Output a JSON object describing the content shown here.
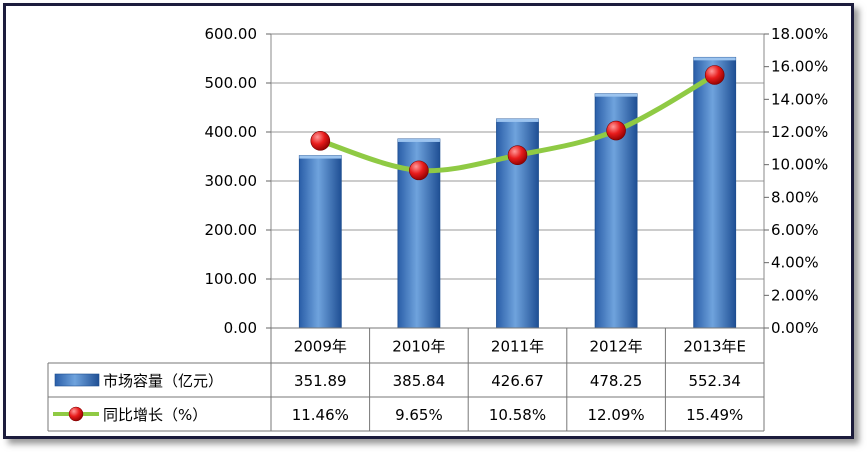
{
  "chart_data": {
    "type": "bar",
    "categories": [
      "2009年",
      "2010年",
      "2011年",
      "2012年",
      "2013年E"
    ],
    "series": [
      {
        "name": "市场容量（亿元）",
        "type": "bar",
        "axis": "left",
        "values": [
          351.89,
          385.84,
          426.67,
          478.25,
          552.34
        ],
        "labels": [
          "351.89",
          "385.84",
          "426.67",
          "478.25",
          "552.34"
        ]
      },
      {
        "name": "同比增长（%）",
        "type": "line",
        "axis": "right",
        "values": [
          11.46,
          9.65,
          10.58,
          12.09,
          15.49
        ],
        "labels": [
          "11.46%",
          "9.65%",
          "10.58%",
          "12.09%",
          "15.49%"
        ]
      }
    ],
    "y_left": {
      "range": [
        0,
        600
      ],
      "ticks": [
        "0.00",
        "100.00",
        "200.00",
        "300.00",
        "400.00",
        "500.00",
        "600.00"
      ]
    },
    "y_right": {
      "range": [
        0,
        18
      ],
      "ticks": [
        "0.00%",
        "2.00%",
        "4.00%",
        "6.00%",
        "8.00%",
        "10.00%",
        "12.00%",
        "14.00%",
        "16.00%",
        "18.00%"
      ]
    },
    "grid": true,
    "legend": "data-table",
    "colors": {
      "bar": "#4a82c4",
      "bar_dark": "#1f4f94",
      "line": "#8fca44",
      "marker": "#e01818"
    }
  }
}
